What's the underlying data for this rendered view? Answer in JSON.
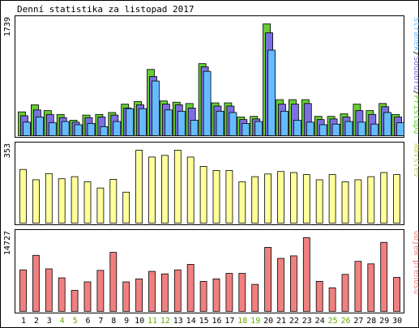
{
  "title": "Denní statistika za listopad 2017",
  "chart_data": [
    {
      "type": "bar",
      "id": "hits",
      "categories": [
        "1",
        "2",
        "3",
        "4",
        "5",
        "6",
        "7",
        "8",
        "9",
        "10",
        "11",
        "12",
        "13",
        "14",
        "15",
        "16",
        "17",
        "18",
        "19",
        "20",
        "21",
        "22",
        "23",
        "24",
        "25",
        "26",
        "27",
        "28",
        "29",
        "30"
      ],
      "max_label": "1739",
      "ylim": [
        0,
        1739
      ],
      "legend": [
        "Přístupů",
        "/",
        "Souborů",
        "/",
        "Stránek"
      ],
      "series": [
        {
          "name": "Přístupů",
          "color": "#66cc33",
          "values": [
            370,
            480,
            390,
            330,
            240,
            320,
            330,
            360,
            490,
            530,
            1030,
            540,
            520,
            500,
            1120,
            510,
            510,
            290,
            300,
            1739,
            560,
            560,
            560,
            300,
            300,
            340,
            490,
            390,
            500,
            330
          ]
        },
        {
          "name": "Souborů",
          "color": "#7a70e0",
          "values": [
            310,
            400,
            330,
            280,
            210,
            280,
            290,
            320,
            430,
            480,
            920,
            490,
            480,
            430,
            1070,
            460,
            460,
            250,
            260,
            1600,
            490,
            490,
            500,
            250,
            260,
            290,
            390,
            330,
            450,
            290
          ]
        },
        {
          "name": "Stránek",
          "color": "#66bbff",
          "values": [
            210,
            290,
            200,
            220,
            170,
            190,
            140,
            220,
            420,
            420,
            850,
            400,
            380,
            240,
            1000,
            380,
            360,
            190,
            220,
            1330,
            380,
            240,
            210,
            170,
            180,
            220,
            210,
            180,
            360,
            200
          ]
        }
      ]
    },
    {
      "type": "bar",
      "id": "visits",
      "categories": [
        "1",
        "2",
        "3",
        "4",
        "5",
        "6",
        "7",
        "8",
        "9",
        "10",
        "11",
        "12",
        "13",
        "14",
        "15",
        "16",
        "17",
        "18",
        "19",
        "20",
        "21",
        "22",
        "23",
        "24",
        "25",
        "26",
        "27",
        "28",
        "29",
        "30"
      ],
      "max_label": "353",
      "ylim": [
        0,
        353
      ],
      "legend": [
        "Návštěv"
      ],
      "series": [
        {
          "name": "Návštěv",
          "color": "#ffff99",
          "values": [
            260,
            210,
            240,
            215,
            225,
            200,
            170,
            212,
            150,
            353,
            320,
            328,
            353,
            320,
            275,
            255,
            255,
            200,
            225,
            238,
            250,
            245,
            235,
            210,
            235,
            200,
            210,
            225,
            245,
            235
          ]
        }
      ]
    },
    {
      "type": "bar",
      "id": "volume",
      "categories": [
        "1",
        "2",
        "3",
        "4",
        "5",
        "6",
        "7",
        "8",
        "9",
        "10",
        "11",
        "12",
        "13",
        "14",
        "15",
        "16",
        "17",
        "18",
        "19",
        "20",
        "21",
        "22",
        "23",
        "24",
        "25",
        "26",
        "27",
        "28",
        "29",
        "30"
      ],
      "max_label": "14727",
      "ylim": [
        0,
        14727
      ],
      "legend": [
        "Objem přenosu"
      ],
      "series": [
        {
          "name": "Objem přenosu",
          "color": "#f08080",
          "values": [
            8300,
            11200,
            8500,
            6700,
            4200,
            5900,
            8200,
            11800,
            5900,
            6500,
            8000,
            7500,
            8300,
            9400,
            6000,
            6500,
            7600,
            7600,
            5400,
            12800,
            10600,
            11100,
            14727,
            6000,
            4700,
            7400,
            10000,
            9500,
            13800,
            6800
          ]
        }
      ]
    }
  ],
  "x_labels": [
    {
      "text": "1",
      "weekend": false
    },
    {
      "text": "2",
      "weekend": false
    },
    {
      "text": "3",
      "weekend": false
    },
    {
      "text": "4",
      "weekend": true
    },
    {
      "text": "5",
      "weekend": true
    },
    {
      "text": "6",
      "weekend": false
    },
    {
      "text": "7",
      "weekend": false
    },
    {
      "text": "8",
      "weekend": false
    },
    {
      "text": "9",
      "weekend": false
    },
    {
      "text": "10",
      "weekend": false
    },
    {
      "text": "11",
      "weekend": true
    },
    {
      "text": "12",
      "weekend": true
    },
    {
      "text": "13",
      "weekend": false
    },
    {
      "text": "14",
      "weekend": false
    },
    {
      "text": "15",
      "weekend": false
    },
    {
      "text": "16",
      "weekend": false
    },
    {
      "text": "17",
      "weekend": false
    },
    {
      "text": "18",
      "weekend": true
    },
    {
      "text": "19",
      "weekend": true
    },
    {
      "text": "20",
      "weekend": false
    },
    {
      "text": "21",
      "weekend": false
    },
    {
      "text": "22",
      "weekend": false
    },
    {
      "text": "23",
      "weekend": false
    },
    {
      "text": "24",
      "weekend": false
    },
    {
      "text": "25",
      "weekend": true
    },
    {
      "text": "26",
      "weekend": true
    },
    {
      "text": "27",
      "weekend": false
    },
    {
      "text": "28",
      "weekend": false
    },
    {
      "text": "29",
      "weekend": false
    },
    {
      "text": "30",
      "weekend": false
    }
  ],
  "colors": {
    "weekday_label": "#000000",
    "weekend_label": "#66aa00",
    "legend_hits": "#66cc33",
    "legend_sep": "#000000",
    "legend_files": "#7a70e0",
    "legend_pages": "#66bbff",
    "legend_visits": "#cccc66",
    "legend_volume": "#f08080",
    "frame": "#000000"
  }
}
